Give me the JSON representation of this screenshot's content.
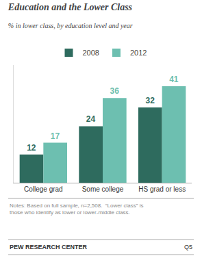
{
  "chart_data": {
    "type": "bar",
    "title": "Education and the Lower Class",
    "subtitle": "% in lower class, by education level and year",
    "categories": [
      "College grad",
      "Some college",
      "HS grad or less"
    ],
    "series": [
      {
        "name": "2008",
        "color": "#2E6B5E",
        "values": [
          12,
          24,
          32
        ]
      },
      {
        "name": "2012",
        "color": "#6DBFB0",
        "values": [
          17,
          36,
          41
        ]
      }
    ],
    "ylim": [
      0,
      50
    ],
    "grid": false,
    "legend": "top",
    "data_labels": true,
    "tick_labels": "x",
    "annotations": [
      "Notes: Based on full sample, n=2,508.  “Lower class” is\nthose who identify as lower or lower-middle class.",
      "PEW RESEARCH CENTER",
      "Q5"
    ]
  }
}
